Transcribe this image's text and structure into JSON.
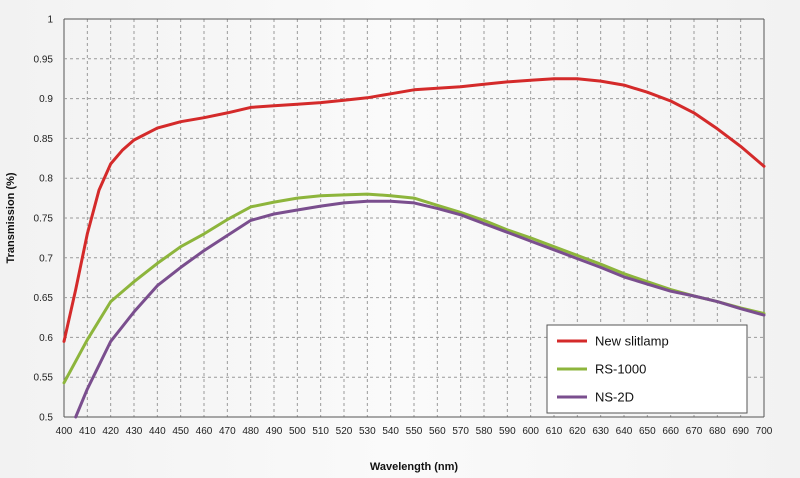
{
  "chart_data": {
    "type": "line",
    "xlabel": "Wavelength (nm)",
    "ylabel": "Transmission (%)",
    "xlim": [
      400,
      700
    ],
    "ylim": [
      0.5,
      1
    ],
    "x_ticks": [
      400,
      410,
      420,
      430,
      440,
      450,
      460,
      470,
      480,
      490,
      500,
      510,
      520,
      530,
      540,
      550,
      560,
      570,
      580,
      590,
      600,
      610,
      620,
      630,
      640,
      650,
      660,
      670,
      680,
      690,
      700
    ],
    "y_ticks": [
      0.5,
      0.55,
      0.6,
      0.65,
      0.7,
      0.75,
      0.8,
      0.85,
      0.9,
      0.95,
      1
    ],
    "grid": true,
    "legend_position": "bottom-right",
    "series": [
      {
        "name": "New slitlamp",
        "color": "#d42a2a",
        "points": [
          [
            400,
            0.595
          ],
          [
            405,
            0.66
          ],
          [
            410,
            0.73
          ],
          [
            415,
            0.785
          ],
          [
            420,
            0.818
          ],
          [
            425,
            0.835
          ],
          [
            430,
            0.848
          ],
          [
            440,
            0.863
          ],
          [
            450,
            0.871
          ],
          [
            460,
            0.876
          ],
          [
            470,
            0.882
          ],
          [
            480,
            0.889
          ],
          [
            490,
            0.891
          ],
          [
            500,
            0.893
          ],
          [
            510,
            0.895
          ],
          [
            520,
            0.898
          ],
          [
            530,
            0.901
          ],
          [
            540,
            0.906
          ],
          [
            550,
            0.911
          ],
          [
            560,
            0.913
          ],
          [
            570,
            0.915
          ],
          [
            580,
            0.918
          ],
          [
            590,
            0.921
          ],
          [
            600,
            0.923
          ],
          [
            610,
            0.925
          ],
          [
            620,
            0.925
          ],
          [
            630,
            0.922
          ],
          [
            640,
            0.917
          ],
          [
            650,
            0.908
          ],
          [
            660,
            0.897
          ],
          [
            670,
            0.882
          ],
          [
            680,
            0.862
          ],
          [
            690,
            0.84
          ],
          [
            700,
            0.815
          ]
        ]
      },
      {
        "name": "RS-1000",
        "color": "#8db53c",
        "points": [
          [
            400,
            0.543
          ],
          [
            410,
            0.597
          ],
          [
            420,
            0.645
          ],
          [
            430,
            0.67
          ],
          [
            440,
            0.693
          ],
          [
            450,
            0.714
          ],
          [
            460,
            0.73
          ],
          [
            470,
            0.748
          ],
          [
            480,
            0.764
          ],
          [
            490,
            0.77
          ],
          [
            500,
            0.775
          ],
          [
            510,
            0.778
          ],
          [
            520,
            0.779
          ],
          [
            530,
            0.78
          ],
          [
            540,
            0.778
          ],
          [
            550,
            0.775
          ],
          [
            560,
            0.766
          ],
          [
            570,
            0.757
          ],
          [
            580,
            0.747
          ],
          [
            590,
            0.735
          ],
          [
            600,
            0.725
          ],
          [
            610,
            0.714
          ],
          [
            620,
            0.703
          ],
          [
            630,
            0.692
          ],
          [
            640,
            0.68
          ],
          [
            650,
            0.67
          ],
          [
            660,
            0.66
          ],
          [
            670,
            0.652
          ],
          [
            680,
            0.645
          ],
          [
            690,
            0.637
          ],
          [
            700,
            0.63
          ]
        ]
      },
      {
        "name": "NS-2D",
        "color": "#7a4e8e",
        "points": [
          [
            405,
            0.5
          ],
          [
            410,
            0.535
          ],
          [
            420,
            0.595
          ],
          [
            430,
            0.632
          ],
          [
            440,
            0.665
          ],
          [
            450,
            0.688
          ],
          [
            460,
            0.709
          ],
          [
            470,
            0.728
          ],
          [
            480,
            0.747
          ],
          [
            490,
            0.755
          ],
          [
            500,
            0.76
          ],
          [
            510,
            0.765
          ],
          [
            520,
            0.769
          ],
          [
            530,
            0.771
          ],
          [
            540,
            0.771
          ],
          [
            550,
            0.769
          ],
          [
            560,
            0.762
          ],
          [
            570,
            0.754
          ],
          [
            580,
            0.743
          ],
          [
            590,
            0.732
          ],
          [
            600,
            0.721
          ],
          [
            610,
            0.71
          ],
          [
            620,
            0.699
          ],
          [
            630,
            0.688
          ],
          [
            640,
            0.676
          ],
          [
            650,
            0.667
          ],
          [
            660,
            0.658
          ],
          [
            670,
            0.652
          ],
          [
            680,
            0.645
          ],
          [
            690,
            0.636
          ],
          [
            700,
            0.628
          ]
        ]
      }
    ]
  }
}
